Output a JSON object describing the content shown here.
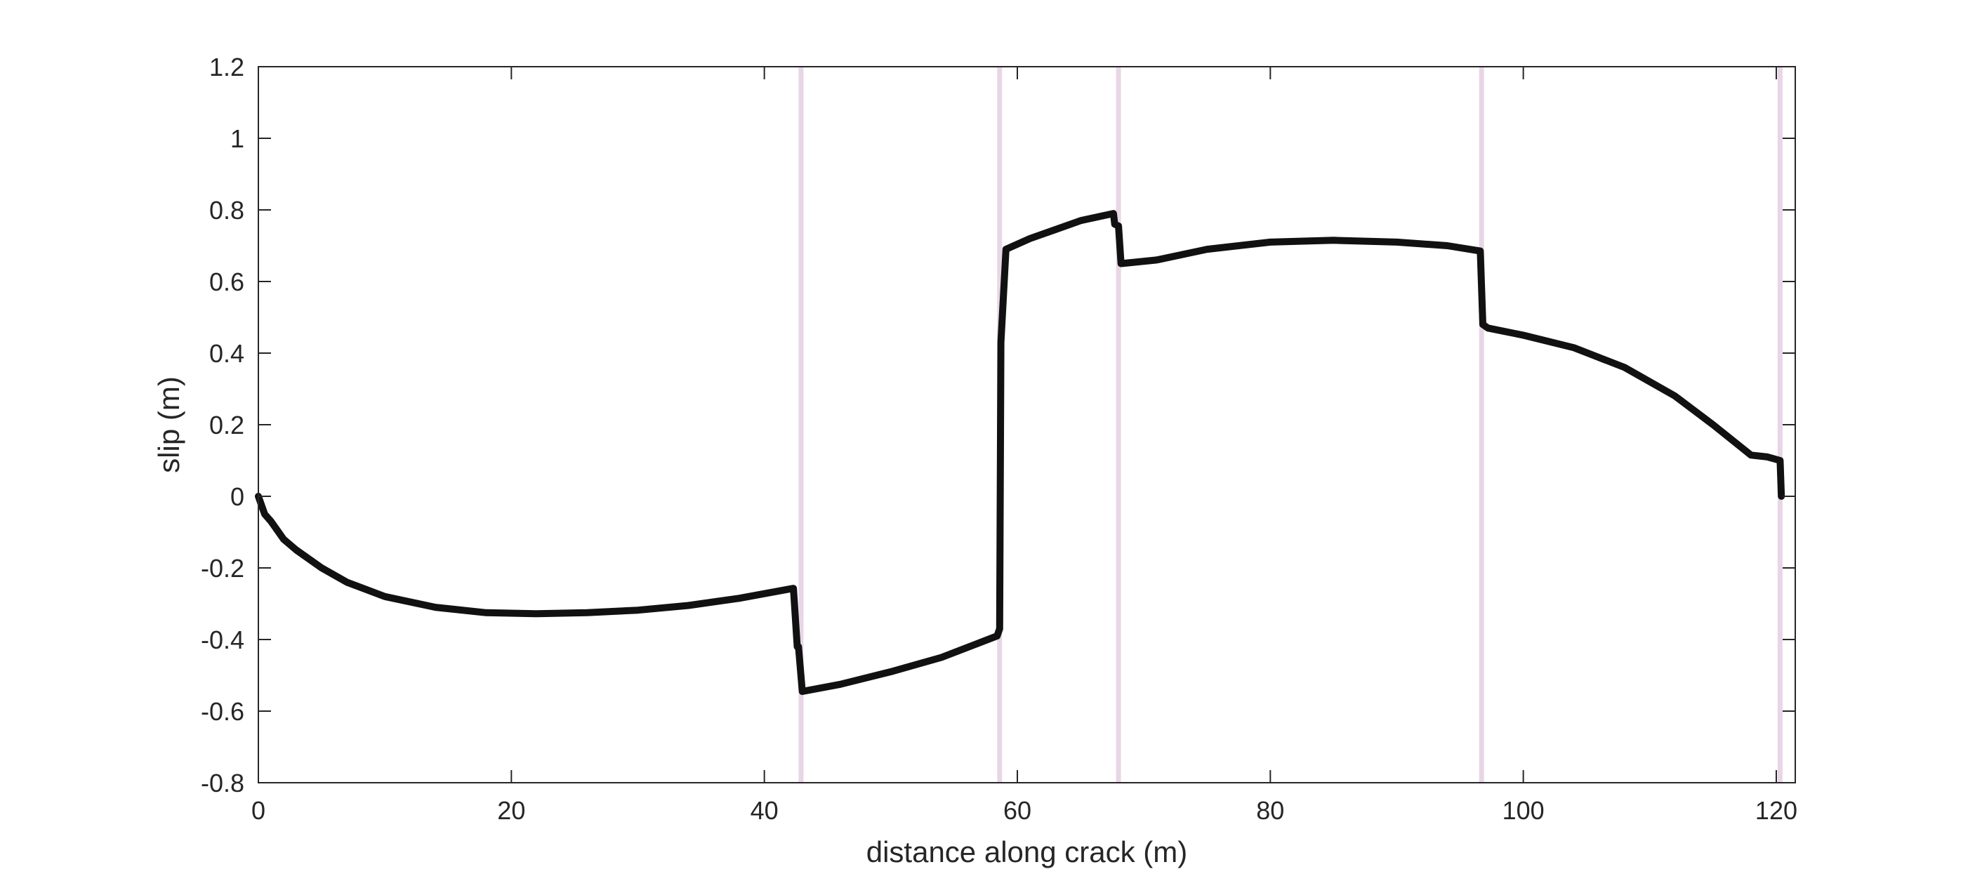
{
  "chart_data": {
    "type": "line",
    "title": "",
    "xlabel": "distance along crack (m)",
    "ylabel": "slip (m)",
    "xlim": [
      0,
      121.5
    ],
    "ylim": [
      -0.8,
      1.2
    ],
    "x_ticks": [
      0,
      20,
      40,
      60,
      80,
      100,
      120
    ],
    "x_tick_labels": [
      "0",
      "20",
      "40",
      "60",
      "80",
      "100",
      "120"
    ],
    "y_ticks": [
      -0.8,
      -0.6,
      -0.4,
      -0.2,
      0,
      0.2,
      0.4,
      0.6,
      0.8,
      1,
      1.2
    ],
    "y_tick_labels": [
      "-0.8",
      "-0.6",
      "-0.4",
      "-0.2",
      "0",
      "0.2",
      "0.4",
      "0.6",
      "0.8",
      "1",
      "1.2"
    ],
    "grid": false,
    "legend": "none",
    "vertical_lines": {
      "color": "#e8d6e6",
      "x": [
        42.9,
        58.6,
        68.0,
        96.7,
        120.3
      ]
    },
    "series": [
      {
        "color": "#111111",
        "x": [
          0,
          0.5,
          1,
          2,
          3,
          5,
          7,
          10,
          14,
          18,
          22,
          26,
          30,
          34,
          38,
          42.3,
          42.6,
          42.7,
          43.0,
          46,
          50,
          54,
          58.4,
          58.6,
          58.7,
          59.1,
          61,
          63,
          65,
          67.6,
          67.7,
          68.0,
          68.2,
          71,
          75,
          80,
          85,
          90,
          94,
          96.6,
          96.8,
          97.2,
          100,
          104,
          108,
          112,
          115,
          118,
          119.3,
          120.3,
          120.4
        ],
        "y": [
          0,
          -0.05,
          -0.07,
          -0.12,
          -0.15,
          -0.2,
          -0.24,
          -0.28,
          -0.31,
          -0.325,
          -0.328,
          -0.325,
          -0.318,
          -0.305,
          -0.285,
          -0.257,
          -0.42,
          -0.42,
          -0.545,
          -0.525,
          -0.49,
          -0.45,
          -0.39,
          -0.37,
          0.43,
          0.69,
          0.72,
          0.745,
          0.77,
          0.79,
          0.76,
          0.755,
          0.65,
          0.66,
          0.69,
          0.71,
          0.715,
          0.71,
          0.7,
          0.685,
          0.48,
          0.47,
          0.45,
          0.415,
          0.36,
          0.28,
          0.2,
          0.115,
          0.11,
          0.1,
          0.0
        ]
      }
    ]
  }
}
